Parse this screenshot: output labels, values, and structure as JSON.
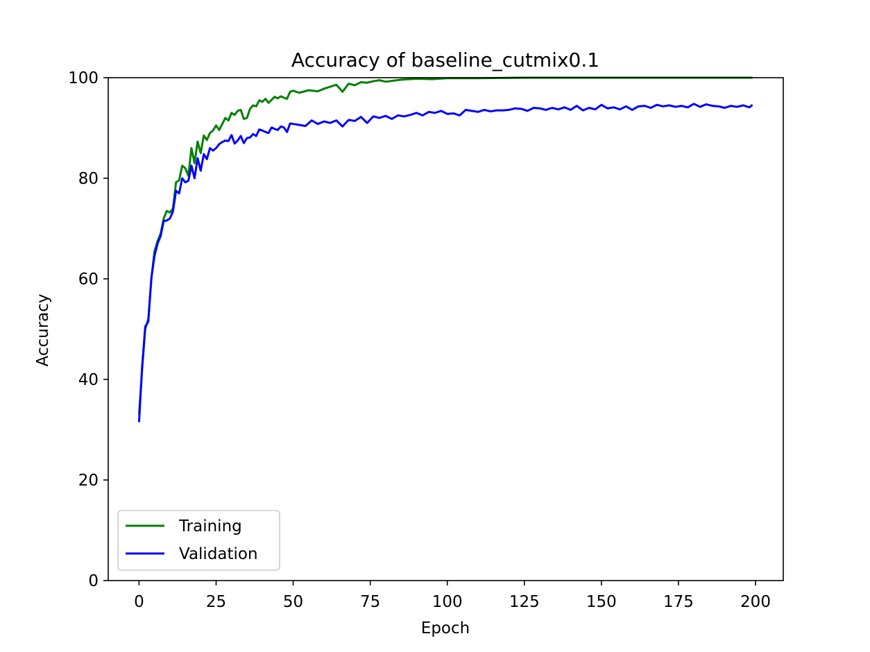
{
  "chart_data": {
    "type": "line",
    "title": "Accuracy of baseline_cutmix0.1",
    "xlabel": "Epoch",
    "ylabel": "Accuracy",
    "xlim": [
      -10,
      209
    ],
    "ylim": [
      0,
      100
    ],
    "xticks": [
      0,
      25,
      50,
      75,
      100,
      125,
      150,
      175,
      200
    ],
    "yticks": [
      0,
      20,
      40,
      60,
      80,
      100
    ],
    "grid": false,
    "legend_position": "lower-left",
    "series": [
      {
        "name": "Training",
        "color": "#008000",
        "points": [
          [
            0,
            33
          ],
          [
            1,
            42
          ],
          [
            2,
            50
          ],
          [
            3,
            52
          ],
          [
            4,
            60
          ],
          [
            5,
            65.5
          ],
          [
            6,
            67.5
          ],
          [
            7,
            69
          ],
          [
            8,
            72
          ],
          [
            9,
            73.5
          ],
          [
            10,
            73.2
          ],
          [
            11,
            74
          ],
          [
            12,
            79.2
          ],
          [
            13,
            79.6
          ],
          [
            14,
            82.5
          ],
          [
            15,
            82
          ],
          [
            16,
            80.5
          ],
          [
            17,
            86
          ],
          [
            18,
            83
          ],
          [
            19,
            87.3
          ],
          [
            20,
            85
          ],
          [
            21,
            88.5
          ],
          [
            22,
            87.6
          ],
          [
            23,
            89
          ],
          [
            24,
            89.5
          ],
          [
            25,
            90.5
          ],
          [
            26,
            89.6
          ],
          [
            27,
            90.8
          ],
          [
            28,
            92
          ],
          [
            29,
            91.5
          ],
          [
            30,
            93
          ],
          [
            31,
            92.6
          ],
          [
            32,
            93.4
          ],
          [
            33,
            93.6
          ],
          [
            34,
            91.8
          ],
          [
            35,
            92
          ],
          [
            36,
            93.8
          ],
          [
            37,
            94.5
          ],
          [
            38,
            94.3
          ],
          [
            39,
            95.5
          ],
          [
            40,
            95.2
          ],
          [
            41,
            95.8
          ],
          [
            42,
            95
          ],
          [
            43,
            95.6
          ],
          [
            44,
            96.2
          ],
          [
            45,
            95.9
          ],
          [
            46,
            96.3
          ],
          [
            47,
            96
          ],
          [
            48,
            95.8
          ],
          [
            49,
            97.2
          ],
          [
            50,
            97.4
          ],
          [
            52,
            97
          ],
          [
            55,
            97.5
          ],
          [
            58,
            97.3
          ],
          [
            60,
            97.8
          ],
          [
            62,
            98.2
          ],
          [
            64,
            98.6
          ],
          [
            66,
            97.2
          ],
          [
            68,
            98.8
          ],
          [
            70,
            98.5
          ],
          [
            72,
            99.1
          ],
          [
            74,
            99
          ],
          [
            76,
            99.3
          ],
          [
            78,
            99.5
          ],
          [
            80,
            99.2
          ],
          [
            85,
            99.6
          ],
          [
            90,
            99.8
          ],
          [
            95,
            99.7
          ],
          [
            100,
            99.9
          ],
          [
            110,
            99.9
          ],
          [
            125,
            100
          ],
          [
            150,
            100
          ],
          [
            175,
            100
          ],
          [
            199,
            100
          ]
        ]
      },
      {
        "name": "Validation",
        "color": "#0000ff",
        "points": [
          [
            0,
            31.5
          ],
          [
            1,
            42.5
          ],
          [
            2,
            50.5
          ],
          [
            3,
            51.5
          ],
          [
            4,
            60.2
          ],
          [
            5,
            64.5
          ],
          [
            6,
            67
          ],
          [
            7,
            68.5
          ],
          [
            8,
            71.5
          ],
          [
            9,
            71.6
          ],
          [
            10,
            72
          ],
          [
            11,
            73.4
          ],
          [
            12,
            77.5
          ],
          [
            13,
            77
          ],
          [
            14,
            80
          ],
          [
            15,
            79.2
          ],
          [
            16,
            79.5
          ],
          [
            17,
            82.5
          ],
          [
            18,
            80
          ],
          [
            19,
            84
          ],
          [
            20,
            81.5
          ],
          [
            21,
            84.8
          ],
          [
            22,
            83.8
          ],
          [
            23,
            86
          ],
          [
            24,
            85.5
          ],
          [
            25,
            86
          ],
          [
            26,
            86.8
          ],
          [
            27,
            87.2
          ],
          [
            28,
            87.5
          ],
          [
            29,
            87.4
          ],
          [
            30,
            88.6
          ],
          [
            31,
            86.9
          ],
          [
            32,
            87.5
          ],
          [
            33,
            88.4
          ],
          [
            34,
            87
          ],
          [
            35,
            88
          ],
          [
            36,
            88.1
          ],
          [
            37,
            88.8
          ],
          [
            38,
            88.4
          ],
          [
            39,
            89.7
          ],
          [
            40,
            89.5
          ],
          [
            41,
            89.2
          ],
          [
            42,
            89
          ],
          [
            43,
            90.1
          ],
          [
            44,
            89.8
          ],
          [
            45,
            89.6
          ],
          [
            46,
            90.3
          ],
          [
            47,
            90.1
          ],
          [
            48,
            89.2
          ],
          [
            49,
            90.9
          ],
          [
            50,
            90.8
          ],
          [
            52,
            90.6
          ],
          [
            54,
            90.4
          ],
          [
            56,
            91.5
          ],
          [
            58,
            90.8
          ],
          [
            60,
            91.3
          ],
          [
            62,
            91
          ],
          [
            64,
            91.5
          ],
          [
            66,
            90.3
          ],
          [
            68,
            91.6
          ],
          [
            70,
            91.4
          ],
          [
            72,
            92.2
          ],
          [
            74,
            91
          ],
          [
            76,
            92.3
          ],
          [
            78,
            92
          ],
          [
            80,
            92.4
          ],
          [
            82,
            91.8
          ],
          [
            84,
            92.5
          ],
          [
            86,
            92.3
          ],
          [
            88,
            92.6
          ],
          [
            90,
            93
          ],
          [
            92,
            92.5
          ],
          [
            94,
            93.2
          ],
          [
            96,
            93
          ],
          [
            98,
            93.4
          ],
          [
            100,
            92.8
          ],
          [
            102,
            92.9
          ],
          [
            104,
            92.5
          ],
          [
            106,
            93.6
          ],
          [
            108,
            93.4
          ],
          [
            110,
            93.2
          ],
          [
            112,
            93.6
          ],
          [
            114,
            93.3
          ],
          [
            116,
            93.5
          ],
          [
            118,
            93.5
          ],
          [
            120,
            93.6
          ],
          [
            122,
            93.9
          ],
          [
            124,
            93.8
          ],
          [
            126,
            93.4
          ],
          [
            128,
            94
          ],
          [
            130,
            93.9
          ],
          [
            132,
            93.6
          ],
          [
            134,
            94
          ],
          [
            136,
            93.7
          ],
          [
            138,
            94.1
          ],
          [
            140,
            93.6
          ],
          [
            142,
            94.4
          ],
          [
            144,
            93.5
          ],
          [
            146,
            94
          ],
          [
            148,
            93.7
          ],
          [
            150,
            94.6
          ],
          [
            152,
            93.9
          ],
          [
            154,
            94.1
          ],
          [
            156,
            93.7
          ],
          [
            158,
            94.3
          ],
          [
            160,
            93.6
          ],
          [
            162,
            94.3
          ],
          [
            164,
            94.4
          ],
          [
            166,
            94
          ],
          [
            168,
            94.6
          ],
          [
            170,
            94.3
          ],
          [
            172,
            94.5
          ],
          [
            174,
            94.2
          ],
          [
            176,
            94.4
          ],
          [
            178,
            94.1
          ],
          [
            180,
            94.8
          ],
          [
            182,
            94.2
          ],
          [
            184,
            94.7
          ],
          [
            186,
            94.4
          ],
          [
            188,
            94.3
          ],
          [
            190,
            94
          ],
          [
            192,
            94.4
          ],
          [
            194,
            94.2
          ],
          [
            196,
            94.5
          ],
          [
            198,
            94.1
          ],
          [
            199,
            94.6
          ]
        ]
      }
    ]
  }
}
